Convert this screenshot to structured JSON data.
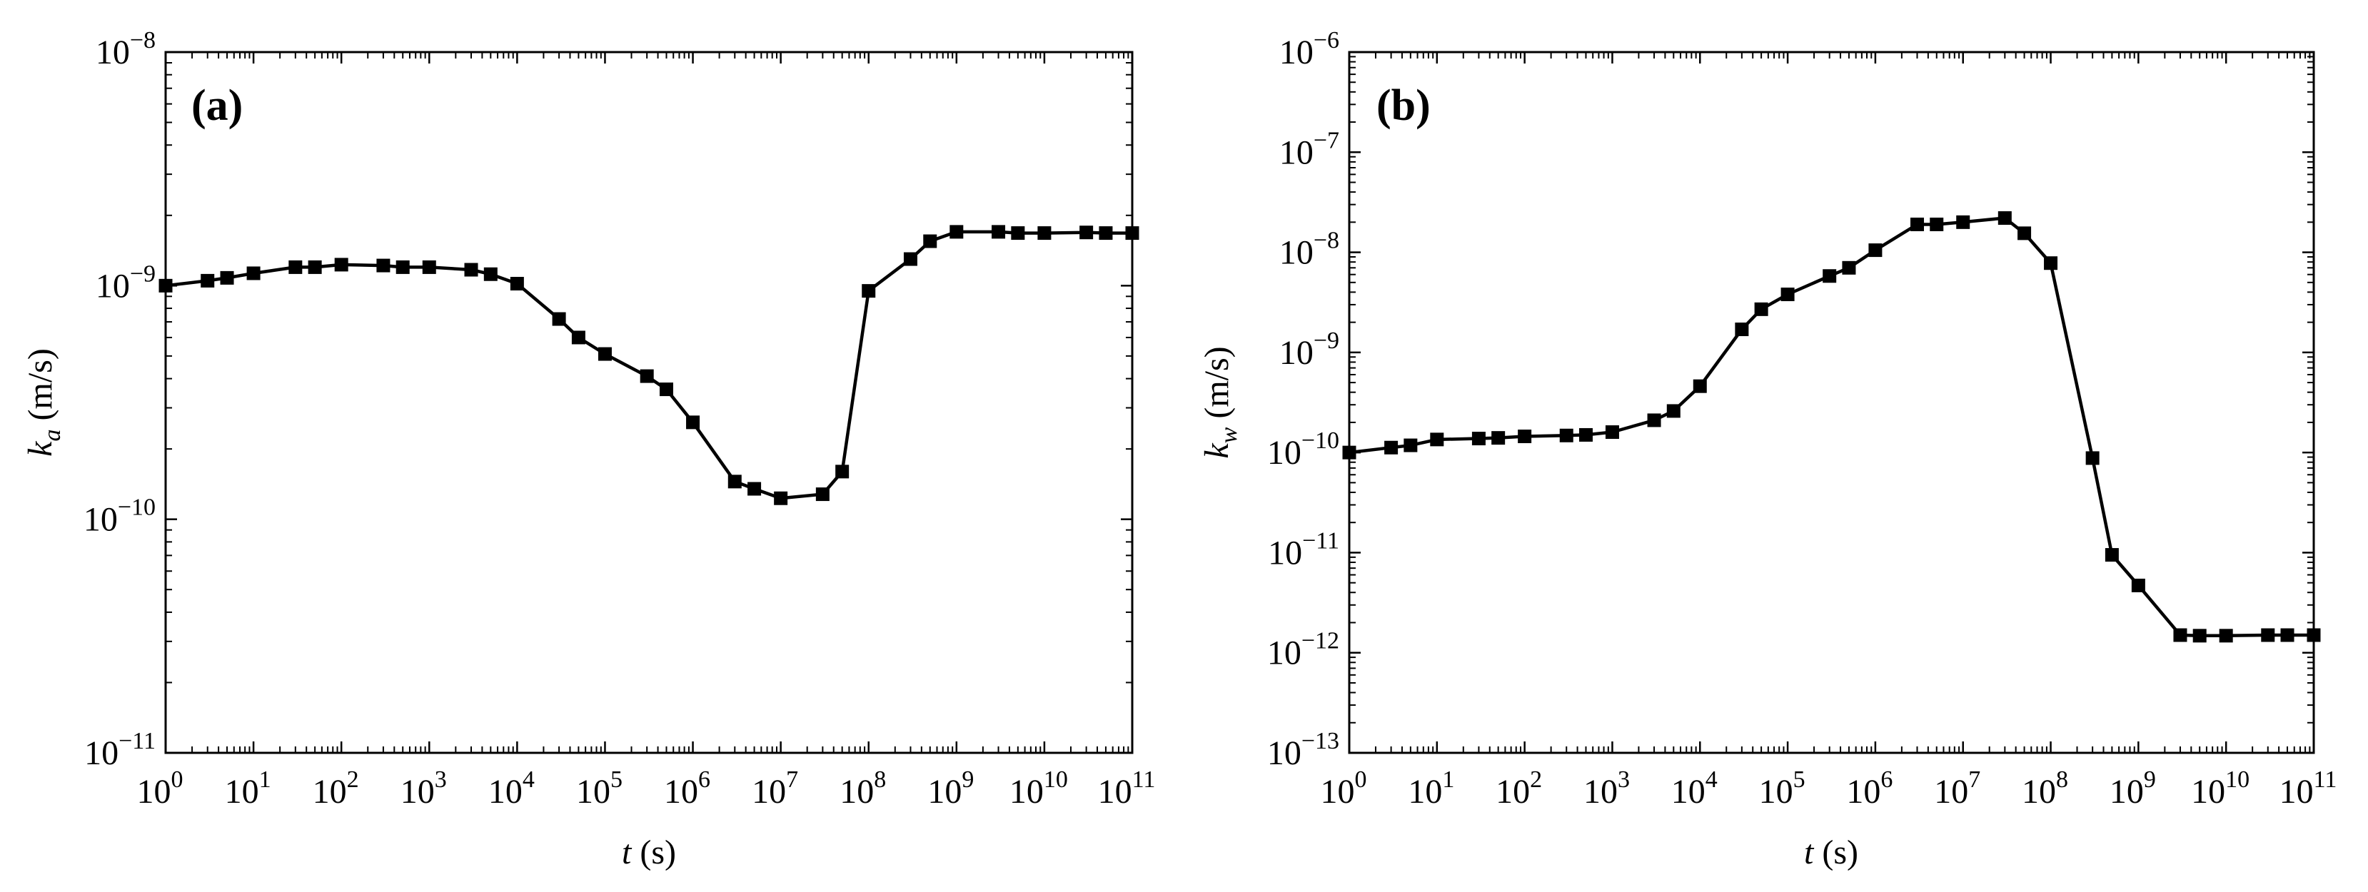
{
  "chart_data": [
    {
      "type": "line",
      "panel_label": "(a)",
      "xlabel": {
        "var": "t",
        "unit": "(s)"
      },
      "ylabel": {
        "var": "k",
        "sub": "a",
        "unit": "(m/s)"
      },
      "x_scale": "log",
      "y_scale": "log",
      "xlim_exp": [
        0,
        11
      ],
      "ylim_exp": [
        -11,
        -8
      ],
      "x_ticks": [
        {
          "base": "10",
          "exp": "0"
        },
        {
          "base": "10",
          "exp": "1"
        },
        {
          "base": "10",
          "exp": "2"
        },
        {
          "base": "10",
          "exp": "3"
        },
        {
          "base": "10",
          "exp": "4"
        },
        {
          "base": "10",
          "exp": "5"
        },
        {
          "base": "10",
          "exp": "6"
        },
        {
          "base": "10",
          "exp": "7"
        },
        {
          "base": "10",
          "exp": "8"
        },
        {
          "base": "10",
          "exp": "9"
        },
        {
          "base": "10",
          "exp": "10"
        },
        {
          "base": "10",
          "exp": "11"
        }
      ],
      "y_ticks": [
        {
          "base": "10",
          "exp": "−11"
        },
        {
          "base": "10",
          "exp": "−10"
        },
        {
          "base": "10",
          "exp": "−9"
        },
        {
          "base": "10",
          "exp": "−8"
        }
      ],
      "marker": "square",
      "series": [
        {
          "name": "k_a",
          "points": [
            [
              1,
              1e-09
            ],
            [
              3,
              1.05e-09
            ],
            [
              5,
              1.08e-09
            ],
            [
              10,
              1.13e-09
            ],
            [
              30,
              1.2e-09
            ],
            [
              50,
              1.2e-09
            ],
            [
              100,
              1.23e-09
            ],
            [
              300,
              1.22e-09
            ],
            [
              500,
              1.2e-09
            ],
            [
              1000,
              1.2e-09
            ],
            [
              3000,
              1.17e-09
            ],
            [
              5000,
              1.12e-09
            ],
            [
              10000,
              1.02e-09
            ],
            [
              30000,
              7.2e-10
            ],
            [
              50000,
              6e-10
            ],
            [
              100000,
              5.1e-10
            ],
            [
              300000,
              4.1e-10
            ],
            [
              500000,
              3.6e-10
            ],
            [
              1000000,
              2.6e-10
            ],
            [
              3000000,
              1.45e-10
            ],
            [
              5000000,
              1.35e-10
            ],
            [
              10000000,
              1.23e-10
            ],
            [
              30000000,
              1.28e-10
            ],
            [
              50000000,
              1.6e-10
            ],
            [
              100000000,
              9.5e-10
            ],
            [
              300000000,
              1.3e-09
            ],
            [
              500000000,
              1.55e-09
            ],
            [
              1000000000,
              1.7e-09
            ],
            [
              3000000000,
              1.7e-09
            ],
            [
              5000000000,
              1.68e-09
            ],
            [
              10000000000,
              1.68e-09
            ],
            [
              30000000000,
              1.69e-09
            ],
            [
              50000000000,
              1.68e-09
            ],
            [
              100000000000,
              1.68e-09
            ]
          ]
        }
      ]
    },
    {
      "type": "line",
      "panel_label": "(b)",
      "xlabel": {
        "var": "t",
        "unit": "(s)"
      },
      "ylabel": {
        "var": "k",
        "sub": "w",
        "unit": "(m/s)"
      },
      "x_scale": "log",
      "y_scale": "log",
      "xlim_exp": [
        0,
        11
      ],
      "ylim_exp": [
        -13,
        -6
      ],
      "x_ticks": [
        {
          "base": "10",
          "exp": "0"
        },
        {
          "base": "10",
          "exp": "1"
        },
        {
          "base": "10",
          "exp": "2"
        },
        {
          "base": "10",
          "exp": "3"
        },
        {
          "base": "10",
          "exp": "4"
        },
        {
          "base": "10",
          "exp": "5"
        },
        {
          "base": "10",
          "exp": "6"
        },
        {
          "base": "10",
          "exp": "7"
        },
        {
          "base": "10",
          "exp": "8"
        },
        {
          "base": "10",
          "exp": "9"
        },
        {
          "base": "10",
          "exp": "10"
        },
        {
          "base": "10",
          "exp": "11"
        }
      ],
      "y_ticks": [
        {
          "base": "10",
          "exp": "−13"
        },
        {
          "base": "10",
          "exp": "−12"
        },
        {
          "base": "10",
          "exp": "−11"
        },
        {
          "base": "10",
          "exp": "−10"
        },
        {
          "base": "10",
          "exp": "−9"
        },
        {
          "base": "10",
          "exp": "−8"
        },
        {
          "base": "10",
          "exp": "−7"
        },
        {
          "base": "10",
          "exp": "−6"
        }
      ],
      "marker": "square",
      "series": [
        {
          "name": "k_w",
          "points": [
            [
              1,
              1e-10
            ],
            [
              3,
              1.12e-10
            ],
            [
              5,
              1.18e-10
            ],
            [
              10,
              1.35e-10
            ],
            [
              30,
              1.38e-10
            ],
            [
              50,
              1.4e-10
            ],
            [
              100,
              1.45e-10
            ],
            [
              300,
              1.48e-10
            ],
            [
              500,
              1.5e-10
            ],
            [
              1000,
              1.6e-10
            ],
            [
              3000,
              2.1e-10
            ],
            [
              5000,
              2.6e-10
            ],
            [
              10000,
              4.6e-10
            ],
            [
              30000,
              1.7e-09
            ],
            [
              50000,
              2.7e-09
            ],
            [
              100000,
              3.8e-09
            ],
            [
              300000,
              5.8e-09
            ],
            [
              500000,
              7e-09
            ],
            [
              1000000,
              1.05e-08
            ],
            [
              3000000,
              1.9e-08
            ],
            [
              5000000,
              1.9e-08
            ],
            [
              10000000,
              2e-08
            ],
            [
              30000000,
              2.2e-08
            ],
            [
              50000000,
              1.55e-08
            ],
            [
              100000000,
              7.8e-09
            ],
            [
              300000000,
              8.8e-11
            ],
            [
              500000000,
              9.5e-12
            ],
            [
              1000000000,
              4.7e-12
            ],
            [
              3000000000,
              1.5e-12
            ],
            [
              5000000000,
              1.48e-12
            ],
            [
              10000000000,
              1.48e-12
            ],
            [
              30000000000,
              1.5e-12
            ],
            [
              50000000000,
              1.5e-12
            ],
            [
              100000000000,
              1.5e-12
            ]
          ]
        }
      ]
    }
  ]
}
